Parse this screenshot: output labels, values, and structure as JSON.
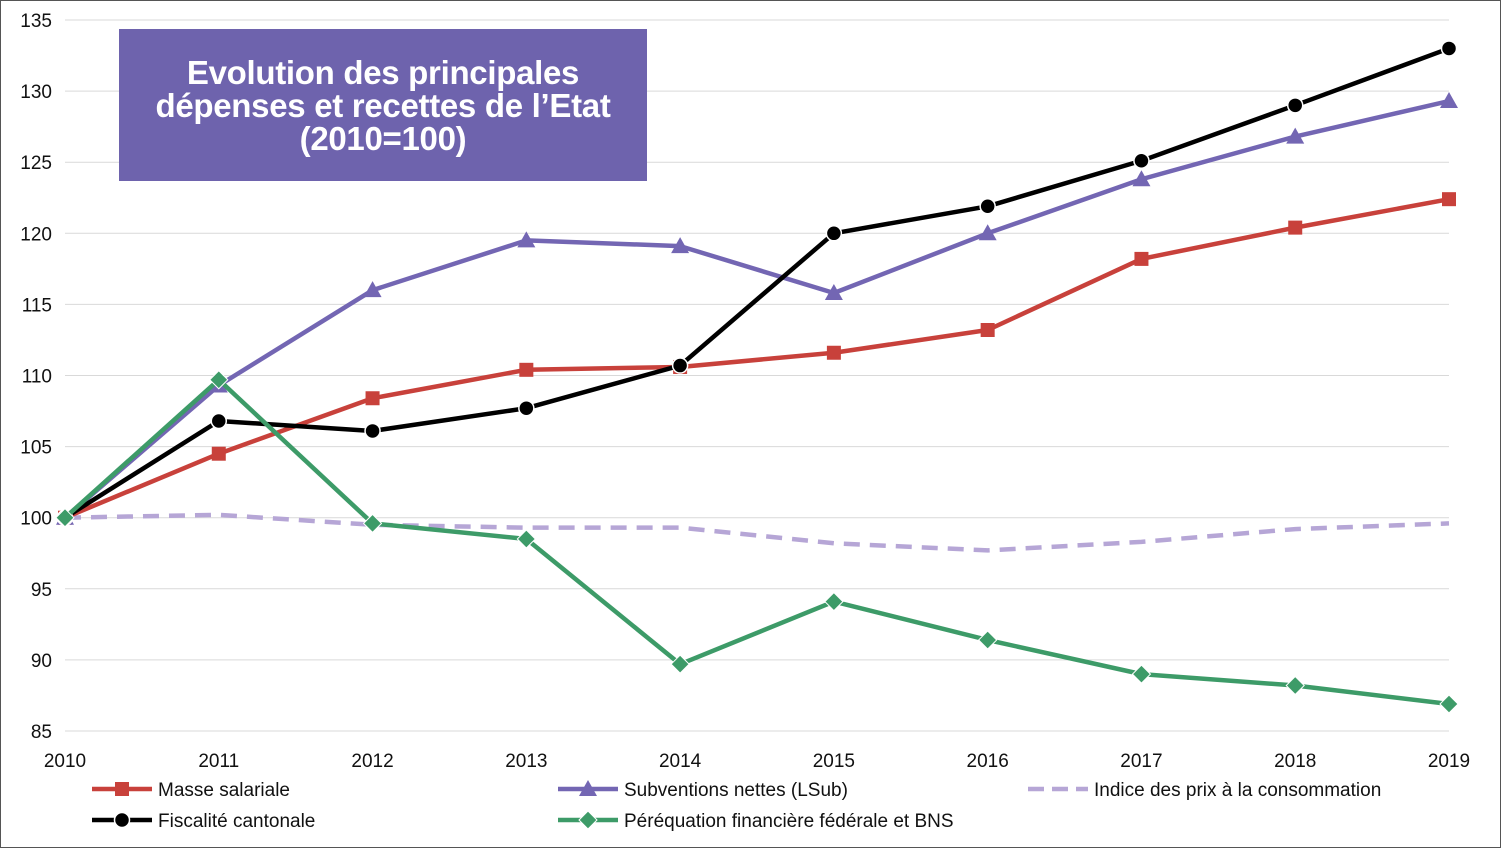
{
  "colors": {
    "masse": "#c8413b",
    "subventions": "#7366b3",
    "ipc": "#b6a6d6",
    "fiscalite": "#000000",
    "perequation": "#3d9b68",
    "title_bg": "#6e63ad",
    "grid": "#d9d9d9"
  },
  "title_lines": [
    "Evolution des principales",
    "dépenses et recettes de l’Etat",
    "(2010=100)"
  ],
  "chart_data": {
    "type": "line",
    "title": "Evolution des principales dépenses et recettes de l’Etat (2010=100)",
    "x": [
      "2010",
      "2011",
      "2012",
      "2013",
      "2014",
      "2015",
      "2016",
      "2017",
      "2018",
      "2019"
    ],
    "ylim": [
      85,
      135
    ],
    "yticks": [
      "85",
      "90",
      "95",
      "100",
      "105",
      "110",
      "115",
      "120",
      "125",
      "130",
      "135"
    ],
    "grid": "horizontal",
    "legend_position": "bottom",
    "series": [
      {
        "name": "Masse salariale",
        "marker": "square",
        "dash": "solid",
        "color_key": "masse",
        "values": [
          100,
          104.5,
          108.4,
          110.4,
          110.6,
          111.6,
          113.2,
          118.2,
          120.4,
          122.4
        ]
      },
      {
        "name": "Subventions nettes (LSub)",
        "marker": "triangle",
        "dash": "solid",
        "color_key": "subventions",
        "values": [
          100,
          109.3,
          116.0,
          119.5,
          119.1,
          115.8,
          120.0,
          123.8,
          126.8,
          129.3
        ]
      },
      {
        "name": "Indice des prix à la consommation",
        "marker": "none",
        "dash": "dashed",
        "color_key": "ipc",
        "values": [
          100,
          100.2,
          99.5,
          99.3,
          99.3,
          98.2,
          97.7,
          98.3,
          99.2,
          99.6
        ]
      },
      {
        "name": "Fiscalité cantonale",
        "marker": "circle",
        "dash": "solid",
        "color_key": "fiscalite",
        "values": [
          100,
          106.8,
          106.1,
          107.7,
          110.7,
          120.0,
          121.9,
          125.1,
          129.0,
          133.0
        ]
      },
      {
        "name": "Péréquation financière fédérale et BNS",
        "marker": "diamond",
        "dash": "solid",
        "color_key": "perequation",
        "values": [
          100,
          109.7,
          99.6,
          98.5,
          89.7,
          94.1,
          91.4,
          89.0,
          88.2,
          86.9
        ]
      }
    ]
  }
}
